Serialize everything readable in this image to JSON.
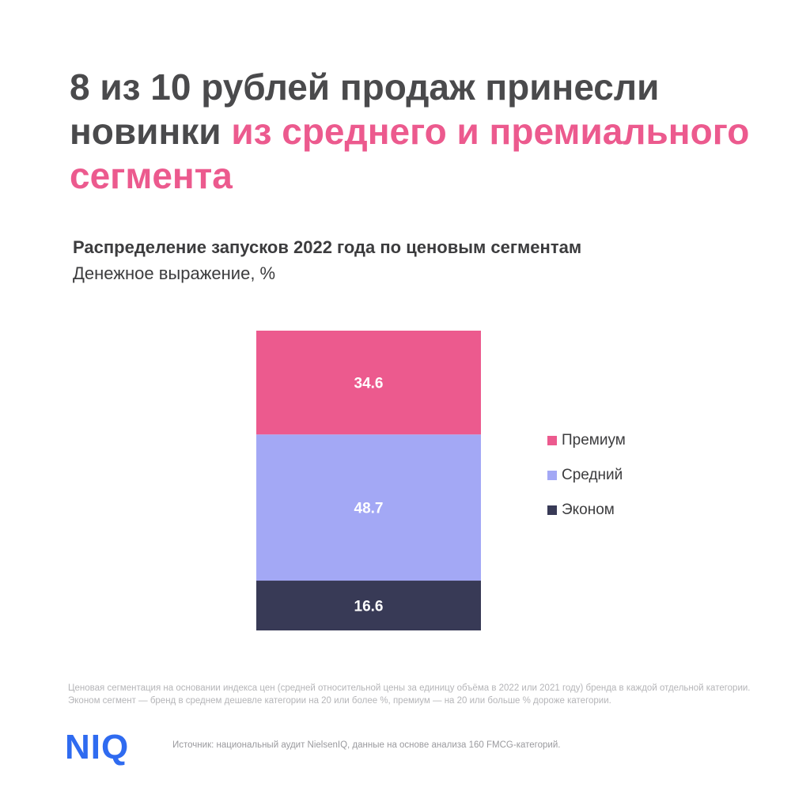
{
  "headline": {
    "part1": "8 из 10 рублей продаж принесли новинки ",
    "part2": "из среднего и премиального сегмента"
  },
  "colors": {
    "headline_text": "#4a4a4c",
    "accent": "#ec5a8e",
    "premium": "#ec5a8e",
    "middle": "#a3a8f5",
    "economy": "#383a56",
    "logo": "#2f6bf0"
  },
  "chart_data": {
    "type": "bar",
    "stacked": true,
    "title": "Распределение запусков 2022 года по ценовым сегментам",
    "subtitle": "Денежное выражение, %",
    "categories": [
      ""
    ],
    "series": [
      {
        "name": "Эконом",
        "values": [
          16.6
        ],
        "color": "#383a56"
      },
      {
        "name": "Средний",
        "values": [
          48.7
        ],
        "color": "#a3a8f5"
      },
      {
        "name": "Премиум",
        "values": [
          34.6
        ],
        "color": "#ec5a8e"
      }
    ],
    "legend_order": [
      "Премиум",
      "Средний",
      "Эконом"
    ],
    "legend_position": "right",
    "grid": false
  },
  "footnote": "Ценовая сегментация на основании индекса цен (средней относительной цены за единицу объёма в 2022 или 2021 году) бренда в каждой отдельной категории. Эконом сегмент — бренд в среднем дешевле категории на 20 или более %, премиум — на 20 или больше % дороже категории.",
  "logo": {
    "text": "NIQ"
  },
  "source": "Источник: национальный аудит NielsenIQ, данные на основе анализа 160 FMCG-категорий."
}
